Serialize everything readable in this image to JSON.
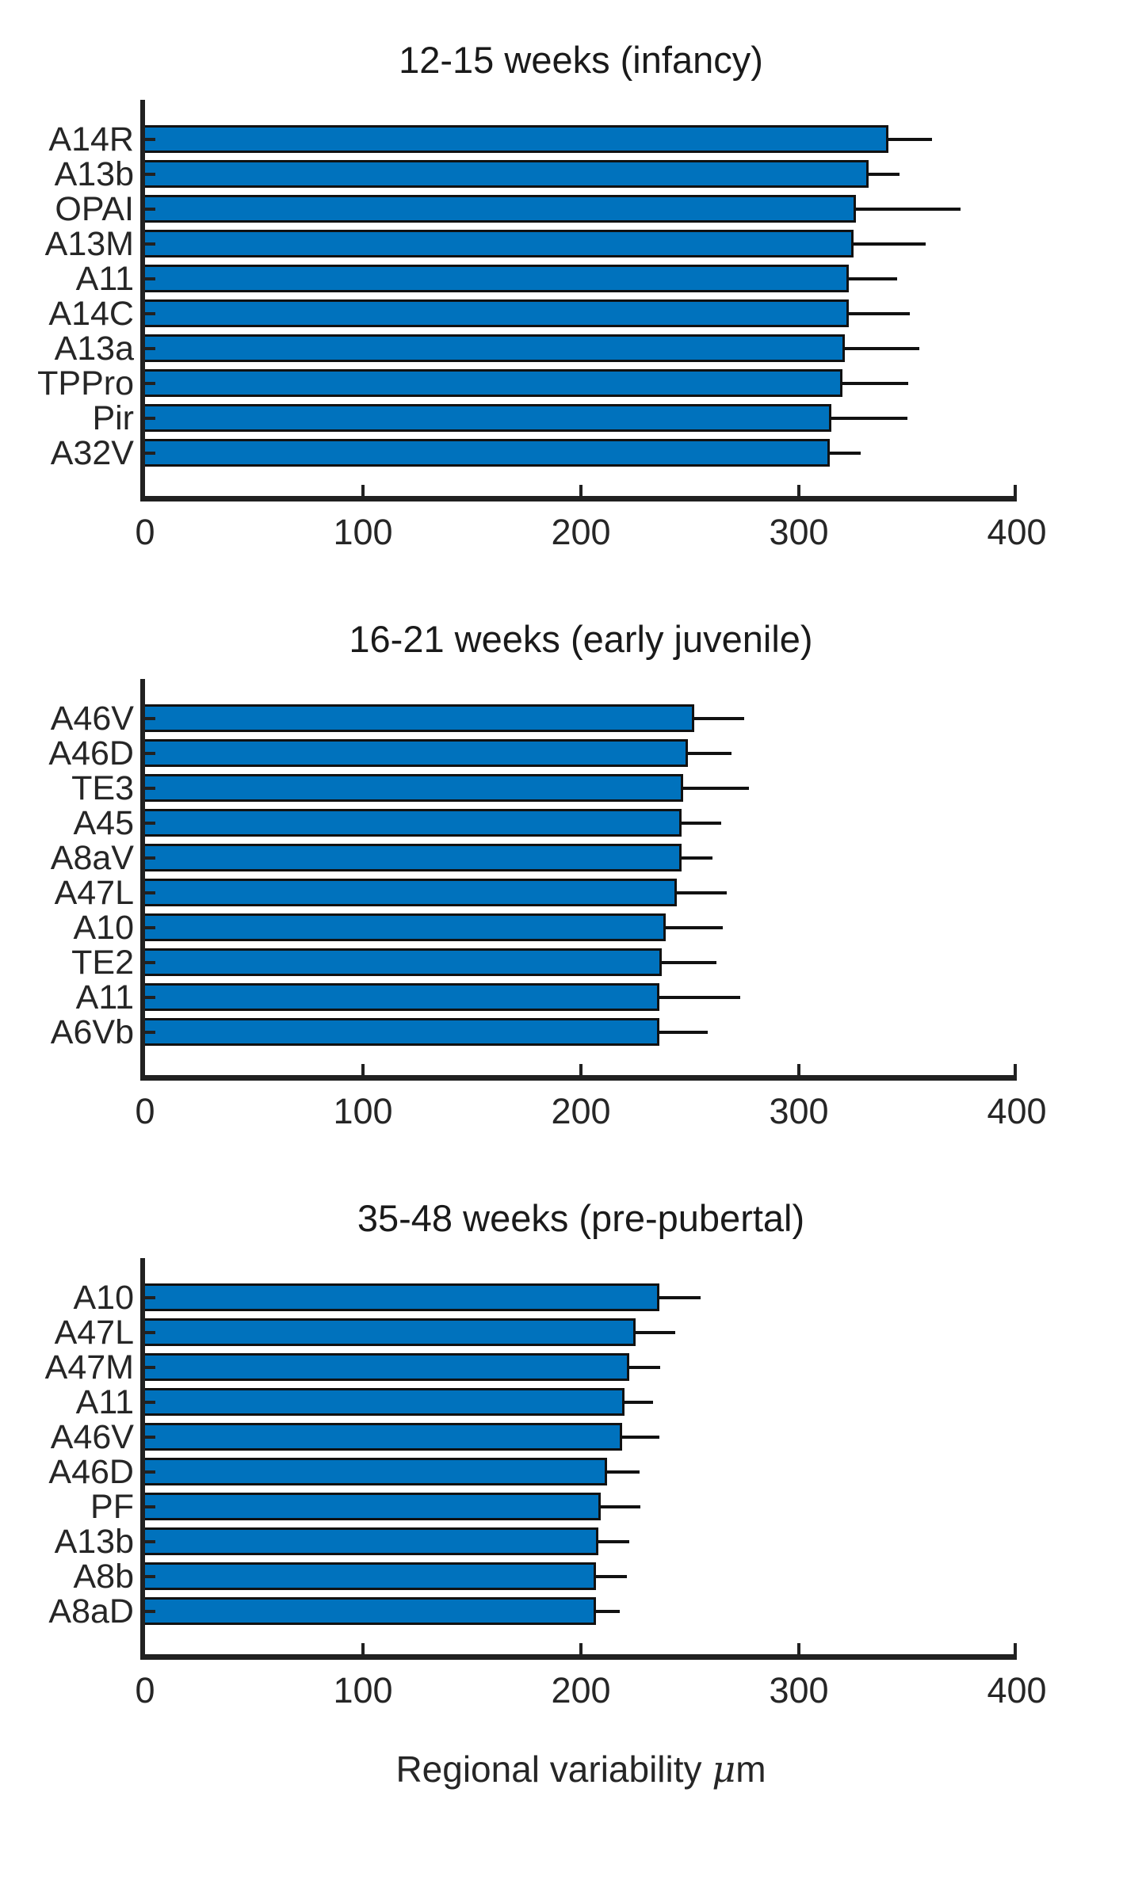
{
  "figure": {
    "background": "#ffffff",
    "xlabel_main": "Regional variability",
    "xlabel_mu": "μ",
    "xlabel_unit": "m"
  },
  "style": {
    "bar_fill": "#0072BD",
    "bar_edge": "#111111",
    "error_color": "#111111",
    "axis_color": "#212121",
    "text_color": "#262626"
  },
  "chart_data": [
    {
      "type": "bar",
      "orientation": "horizontal",
      "title": "12-15 weeks (infancy)",
      "xlabel": "Regional variability μm",
      "xlim": [
        0,
        400
      ],
      "xticks": [
        0,
        100,
        200,
        300,
        400
      ],
      "xtick_labels": [
        "0",
        "100",
        "200",
        "300",
        "400"
      ],
      "grid": false,
      "legend": "none",
      "error_bars": "upper_only",
      "categories": [
        "A14R",
        "A13b",
        "OPAI",
        "A13M",
        "A11",
        "A14C",
        "A13a",
        "TPPro",
        "Pir",
        "A32V"
      ],
      "values": [
        341,
        332,
        326,
        325,
        323,
        323,
        321,
        320,
        315,
        314
      ],
      "error_upper": [
        361,
        346,
        374,
        358,
        345,
        351,
        355,
        350,
        350,
        328
      ]
    },
    {
      "type": "bar",
      "orientation": "horizontal",
      "title": "16-21 weeks (early juvenile)",
      "xlabel": "Regional variability μm",
      "xlim": [
        0,
        400
      ],
      "xticks": [
        0,
        100,
        200,
        300,
        400
      ],
      "xtick_labels": [
        "0",
        "100",
        "200",
        "300",
        "400"
      ],
      "grid": false,
      "legend": "none",
      "error_bars": "upper_only",
      "categories": [
        "A46V",
        "A46D",
        "TE3",
        "A45",
        "A8aV",
        "A47L",
        "A10",
        "TE2",
        "A11",
        "A6Vb"
      ],
      "values": [
        252,
        249,
        247,
        246,
        246,
        244,
        239,
        237,
        236,
        236
      ],
      "error_upper": [
        275,
        269,
        277,
        264,
        260,
        267,
        265,
        262,
        273,
        258
      ]
    },
    {
      "type": "bar",
      "orientation": "horizontal",
      "title": "35-48 weeks (pre-pubertal)",
      "xlabel": "Regional variability μm",
      "xlim": [
        0,
        400
      ],
      "xticks": [
        0,
        100,
        200,
        300,
        400
      ],
      "xtick_labels": [
        "0",
        "100",
        "200",
        "300",
        "400"
      ],
      "grid": false,
      "legend": "none",
      "error_bars": "upper_only",
      "categories": [
        "A10",
        "A47L",
        "A47M",
        "A11",
        "A46V",
        "A46D",
        "PF",
        "A13b",
        "A8b",
        "A8aD"
      ],
      "values": [
        236,
        225,
        222,
        220,
        219,
        212,
        209,
        208,
        207,
        207
      ],
      "error_upper": [
        255,
        243,
        236,
        233,
        236,
        227,
        227,
        222,
        221,
        218
      ]
    }
  ]
}
